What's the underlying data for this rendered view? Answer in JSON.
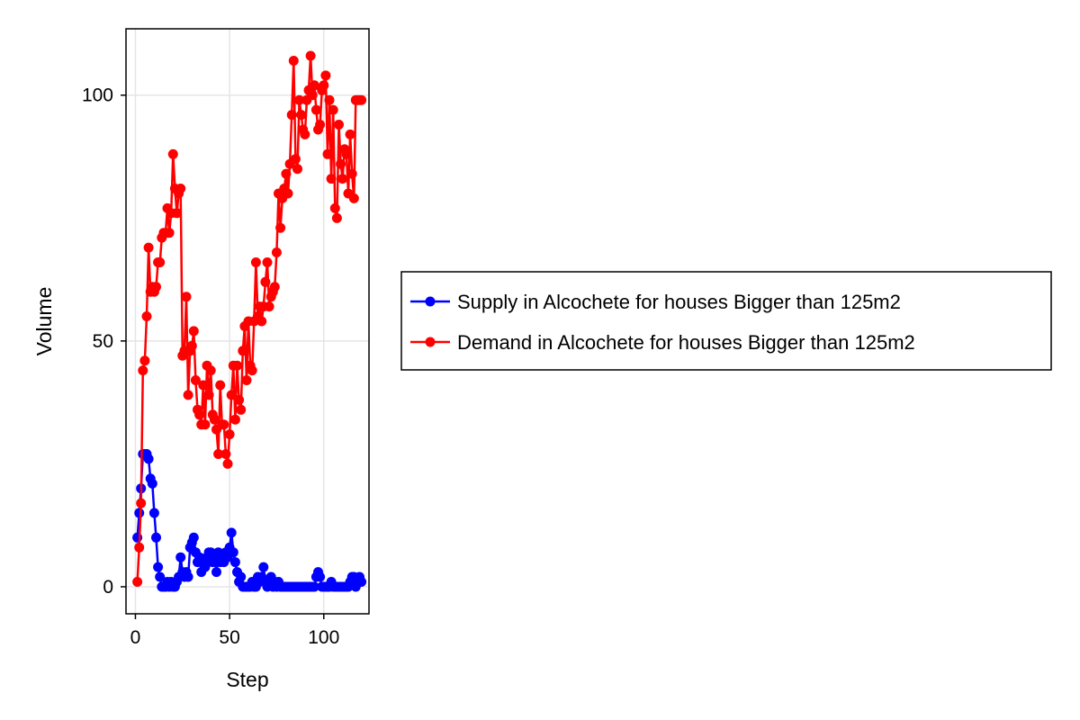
{
  "chart_data": {
    "type": "line",
    "xlabel": "Step",
    "ylabel": "Volume",
    "xlim": [
      -5,
      124
    ],
    "ylim": [
      -5.5,
      113.5
    ],
    "xticks": [
      0,
      50,
      100
    ],
    "yticks": [
      0,
      50,
      100
    ],
    "grid": true,
    "legend_position": "right",
    "series": [
      {
        "name": "Supply in Alcochete for houses Bigger than 125m2",
        "color": "#0000ff",
        "x": [
          1,
          2,
          3,
          4,
          5,
          6,
          7,
          8,
          9,
          10,
          11,
          12,
          13,
          14,
          15,
          16,
          17,
          18,
          19,
          20,
          21,
          22,
          23,
          24,
          25,
          26,
          27,
          28,
          29,
          30,
          31,
          32,
          33,
          34,
          35,
          36,
          37,
          38,
          39,
          40,
          41,
          42,
          43,
          44,
          45,
          46,
          47,
          48,
          49,
          50,
          51,
          52,
          53,
          54,
          55,
          56,
          57,
          58,
          59,
          60,
          61,
          62,
          63,
          64,
          65,
          66,
          67,
          68,
          69,
          70,
          71,
          72,
          73,
          74,
          75,
          76,
          77,
          78,
          79,
          80,
          81,
          82,
          83,
          84,
          85,
          86,
          87,
          88,
          89,
          90,
          91,
          92,
          93,
          94,
          95,
          96,
          97,
          98,
          99,
          100,
          101,
          102,
          103,
          104,
          105,
          106,
          107,
          108,
          109,
          110,
          111,
          112,
          113,
          114,
          115,
          116,
          117,
          118,
          119,
          120
        ],
        "y": [
          10,
          15,
          20,
          27,
          27,
          27,
          26,
          22,
          21,
          15,
          10,
          4,
          2,
          0,
          0,
          0,
          1,
          0,
          1,
          0,
          0,
          1,
          2,
          6,
          3,
          2,
          3,
          2,
          8,
          9,
          10,
          7,
          5,
          6,
          3,
          5,
          4,
          6,
          7,
          7,
          5,
          6,
          3,
          7,
          5,
          6,
          5,
          7,
          6,
          8,
          11,
          7,
          5,
          3,
          1,
          2,
          0,
          0,
          0,
          0,
          0,
          1,
          0,
          0,
          2,
          1,
          2,
          4,
          1,
          0,
          1,
          2,
          0,
          1,
          0,
          1,
          0,
          0,
          0,
          0,
          0,
          0,
          0,
          0,
          0,
          0,
          0,
          0,
          0,
          0,
          0,
          0,
          0,
          0,
          0,
          2,
          3,
          2,
          0,
          0,
          0,
          0,
          0,
          1,
          0,
          0,
          0,
          0,
          0,
          0,
          0,
          0,
          0,
          1,
          2,
          2,
          0,
          1,
          2,
          1
        ]
      },
      {
        "name": "Demand in Alcochete for houses Bigger than 125m2",
        "color": "#ff0000",
        "x": [
          1,
          2,
          3,
          4,
          5,
          6,
          7,
          8,
          9,
          10,
          11,
          12,
          13,
          14,
          15,
          16,
          17,
          18,
          19,
          20,
          21,
          22,
          23,
          24,
          25,
          26,
          27,
          28,
          29,
          30,
          31,
          32,
          33,
          34,
          35,
          36,
          37,
          38,
          39,
          40,
          41,
          42,
          43,
          44,
          45,
          46,
          47,
          48,
          49,
          50,
          51,
          52,
          53,
          54,
          55,
          56,
          57,
          58,
          59,
          60,
          61,
          62,
          63,
          64,
          65,
          66,
          67,
          68,
          69,
          70,
          71,
          72,
          73,
          74,
          75,
          76,
          77,
          78,
          79,
          80,
          81,
          82,
          83,
          84,
          85,
          86,
          87,
          88,
          89,
          90,
          91,
          92,
          93,
          94,
          95,
          96,
          97,
          98,
          99,
          100,
          101,
          102,
          103,
          104,
          105,
          106,
          107,
          108,
          109,
          110,
          111,
          112,
          113,
          114,
          115,
          116,
          117,
          118,
          119,
          120
        ],
        "y": [
          1,
          8,
          17,
          44,
          46,
          55,
          69,
          60,
          61,
          60,
          61,
          66,
          66,
          71,
          72,
          72,
          77,
          72,
          76,
          88,
          81,
          76,
          80,
          81,
          47,
          48,
          59,
          39,
          48,
          49,
          52,
          42,
          36,
          35,
          33,
          41,
          33,
          45,
          39,
          44,
          35,
          34,
          32,
          27,
          41,
          33,
          33,
          27,
          25,
          31,
          39,
          45,
          34,
          45,
          38,
          36,
          48,
          53,
          42,
          54,
          45,
          44,
          54,
          66,
          55,
          57,
          54,
          57,
          62,
          66,
          57,
          59,
          60,
          61,
          68,
          80,
          73,
          79,
          81,
          84,
          80,
          86,
          96,
          107,
          87,
          85,
          99,
          96,
          93,
          92,
          99,
          101,
          108,
          100,
          102,
          97,
          93,
          94,
          101,
          102,
          104,
          88,
          99,
          83,
          97,
          77,
          75,
          94,
          86,
          83,
          89,
          88,
          80,
          92,
          84,
          79,
          99,
          99,
          99,
          99
        ]
      }
    ]
  }
}
